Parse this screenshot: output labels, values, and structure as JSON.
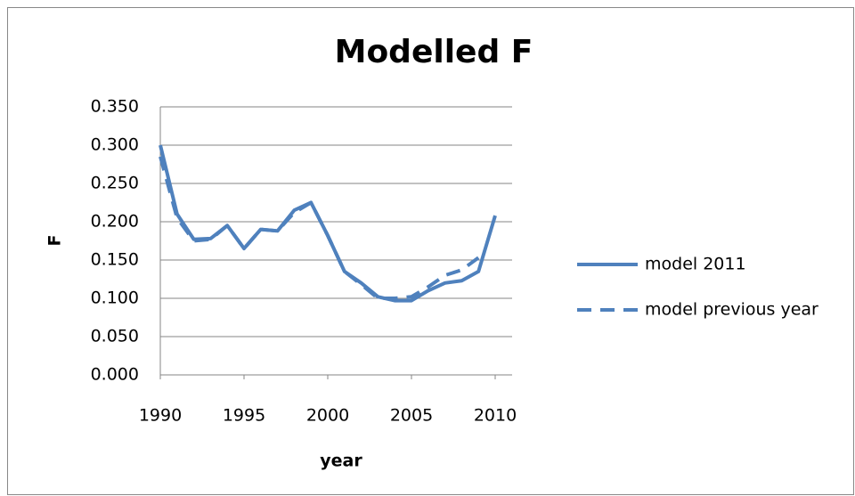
{
  "chart_data": {
    "type": "line",
    "title": "Modelled F",
    "x_label": "year",
    "y_label": "F",
    "x": [
      1990,
      1991,
      1992,
      1993,
      1994,
      1995,
      1996,
      1997,
      1998,
      1999,
      2000,
      2001,
      2002,
      2003,
      2004,
      2005,
      2006,
      2007,
      2008,
      2009,
      2010
    ],
    "series": [
      {
        "name": "model 2011",
        "color": "#4f81bd",
        "dash": false,
        "values": [
          0.3,
          0.21,
          0.177,
          0.178,
          0.195,
          0.165,
          0.19,
          0.188,
          0.215,
          0.225,
          0.182,
          0.135,
          0.12,
          0.102,
          0.097,
          0.097,
          0.11,
          0.12,
          0.123,
          0.135,
          0.208
        ]
      },
      {
        "name": "model previous year",
        "color": "#4f81bd",
        "dash": true,
        "values": [
          0.285,
          0.205,
          0.175,
          0.177,
          0.195,
          0.165,
          0.19,
          0.188,
          0.212,
          0.225,
          0.182,
          0.135,
          0.118,
          0.1,
          0.1,
          0.102,
          0.115,
          0.13,
          0.137,
          0.153,
          null
        ]
      }
    ],
    "xlim": [
      1990,
      2010
    ],
    "xticks": [
      1990,
      1995,
      2000,
      2005,
      2010
    ],
    "ylim": [
      0,
      0.35
    ],
    "yticks": [
      {
        "value": 0,
        "label": "0.000"
      },
      {
        "value": 0.05,
        "label": "0.050"
      },
      {
        "value": 0.1,
        "label": "0.100"
      },
      {
        "value": 0.15,
        "label": "0.150"
      },
      {
        "value": 0.2,
        "label": "0.200"
      },
      {
        "value": 0.25,
        "label": "0.250"
      },
      {
        "value": 0.3,
        "label": "0.300"
      },
      {
        "value": 0.35,
        "label": "0.350"
      }
    ],
    "grid": true,
    "legend": "right"
  }
}
